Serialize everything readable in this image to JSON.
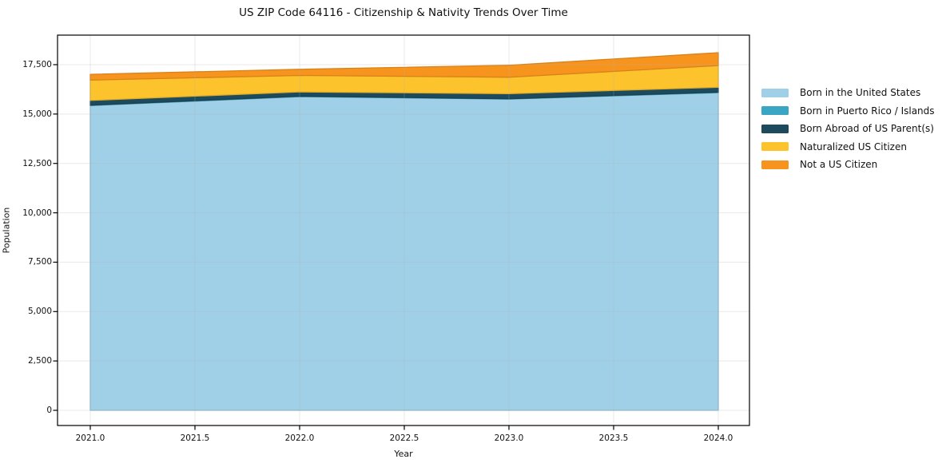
{
  "chart_data": {
    "type": "area",
    "stacked": true,
    "title": "US ZIP Code 64116 - Citizenship & Nativity Trends Over Time",
    "xlabel": "Year",
    "ylabel": "Population",
    "x": [
      2021,
      2022,
      2023,
      2024
    ],
    "xtick_labels": [
      "2021.0",
      "2021.5",
      "2022.0",
      "2022.5",
      "2023.0",
      "2023.5",
      "2024.0"
    ],
    "xtick_values": [
      2021.0,
      2021.5,
      2022.0,
      2022.5,
      2023.0,
      2023.5,
      2024.0
    ],
    "ytick_values": [
      0,
      2500,
      5000,
      7500,
      10000,
      12500,
      15000,
      17500
    ],
    "ytick_labels": [
      "0",
      "2,500",
      "5,000",
      "7,500",
      "10,000",
      "12,500",
      "15,000",
      "17,500"
    ],
    "ylim": [
      0,
      19000
    ],
    "grid": true,
    "legend_position": "outside-right-top",
    "series": [
      {
        "name": "Born in the United States",
        "color": "#9fd0e8",
        "values": [
          15430,
          15880,
          15760,
          16080
        ]
      },
      {
        "name": "Born in Puerto Rico / Islands",
        "color": "#3aa6c4",
        "values": [
          20,
          25,
          15,
          30
        ]
      },
      {
        "name": "Born Abroad of US Parent(s)",
        "color": "#1d4a5c",
        "values": [
          240,
          215,
          255,
          245
        ]
      },
      {
        "name": "Naturalized US Citizen",
        "color": "#fcc32d",
        "values": [
          1030,
          835,
          835,
          1100
        ]
      },
      {
        "name": "Not a US Citizen",
        "color": "#f7941e",
        "values": [
          290,
          310,
          605,
          650
        ]
      }
    ],
    "colors": {
      "spine": "#000000",
      "grid": "#b0b0b0",
      "text": "#111111",
      "background": "#ffffff"
    }
  }
}
